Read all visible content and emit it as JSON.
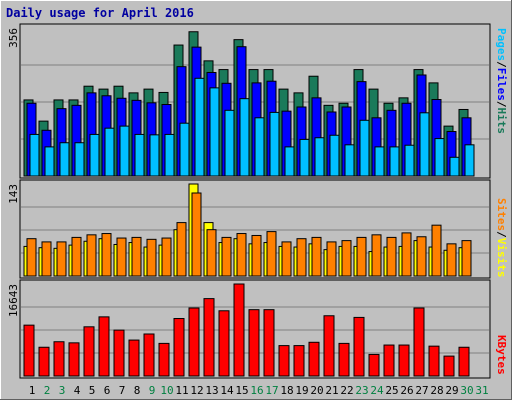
{
  "chart_data": [
    {
      "type": "bar",
      "panel": "hits-files-pages",
      "title": "Daily usage for April 2016",
      "ymax_label": "356",
      "ylim": [
        0,
        356
      ],
      "categories": [
        "1",
        "2",
        "3",
        "4",
        "5",
        "6",
        "7",
        "8",
        "9",
        "10",
        "11",
        "12",
        "13",
        "14",
        "15",
        "16",
        "17",
        "18",
        "19",
        "20",
        "21",
        "22",
        "23",
        "24",
        "25",
        "26",
        "27",
        "28",
        "29",
        "30",
        "31"
      ],
      "weekend_days": [
        "2",
        "3",
        "9",
        "10",
        "16",
        "17",
        "23",
        "24",
        "30",
        "31"
      ],
      "series": [
        {
          "name": "Hits",
          "color": "#1a7a5a",
          "values": [
            183,
            132,
            183,
            183,
            216,
            209,
            216,
            200,
            209,
            201,
            315,
            347,
            277,
            256,
            328,
            256,
            256,
            209,
            200,
            240,
            170,
            175,
            256,
            209,
            175,
            188,
            256,
            224,
            120,
            160,
            null
          ]
        },
        {
          "name": "Files",
          "color": "#0000ff",
          "values": [
            175,
            110,
            162,
            170,
            200,
            193,
            187,
            182,
            176,
            172,
            263,
            310,
            249,
            223,
            311,
            224,
            228,
            156,
            166,
            188,
            154,
            166,
            227,
            140,
            158,
            175,
            243,
            184,
            107,
            140,
            null
          ]
        },
        {
          "name": "Pages",
          "color": "#00c0ff",
          "values": [
            100,
            70,
            80,
            80,
            100,
            115,
            120,
            100,
            99,
            100,
            127,
            235,
            212,
            158,
            186,
            140,
            153,
            70,
            88,
            92,
            98,
            75,
            134,
            70,
            70,
            74,
            152,
            90,
            45,
            75,
            null
          ]
        }
      ],
      "legend": [
        "Pages",
        "Files",
        "Hits"
      ]
    },
    {
      "type": "bar",
      "panel": "visits-sites",
      "ymax_label": "143",
      "ylim": [
        0,
        143
      ],
      "categories": [
        "1",
        "2",
        "3",
        "4",
        "5",
        "6",
        "7",
        "8",
        "9",
        "10",
        "11",
        "12",
        "13",
        "14",
        "15",
        "16",
        "17",
        "18",
        "19",
        "20",
        "21",
        "22",
        "23",
        "24",
        "25",
        "26",
        "27",
        "28",
        "29",
        "30",
        "31"
      ],
      "series": [
        {
          "name": "Visits",
          "color": "#ffff00",
          "values": [
            46,
            44,
            43,
            48,
            54,
            58,
            49,
            52,
            45,
            48,
            72,
            143,
            83,
            52,
            58,
            50,
            52,
            46,
            45,
            50,
            41,
            46,
            46,
            38,
            45,
            46,
            55,
            45,
            40,
            44,
            null
          ]
        },
        {
          "name": "Sites",
          "color": "#ff8000",
          "values": [
            58,
            53,
            53,
            60,
            64,
            66,
            59,
            60,
            57,
            59,
            83,
            129,
            72,
            60,
            66,
            63,
            69,
            53,
            58,
            60,
            53,
            55,
            60,
            64,
            60,
            67,
            61,
            79,
            50,
            55,
            null
          ]
        }
      ],
      "legend": [
        "Sites",
        "Visits"
      ]
    },
    {
      "type": "bar",
      "panel": "kbytes",
      "ymax_label": "16643",
      "ylim": [
        0,
        16643
      ],
      "categories": [
        "1",
        "2",
        "3",
        "4",
        "5",
        "6",
        "7",
        "8",
        "9",
        "10",
        "11",
        "12",
        "13",
        "14",
        "15",
        "16",
        "17",
        "18",
        "19",
        "20",
        "21",
        "22",
        "23",
        "24",
        "25",
        "26",
        "27",
        "28",
        "29",
        "30",
        "31"
      ],
      "series": [
        {
          "name": "KBytes",
          "color": "#ff0000",
          "values": [
            9200,
            5200,
            6200,
            6000,
            8900,
            10700,
            8300,
            6500,
            7600,
            5900,
            10400,
            12300,
            14000,
            11800,
            16643,
            12000,
            12000,
            5500,
            5500,
            6100,
            10900,
            5900,
            10600,
            3900,
            5600,
            5600,
            12300,
            5400,
            3600,
            5200,
            null
          ]
        }
      ],
      "legend": [
        "KBytes"
      ]
    }
  ]
}
